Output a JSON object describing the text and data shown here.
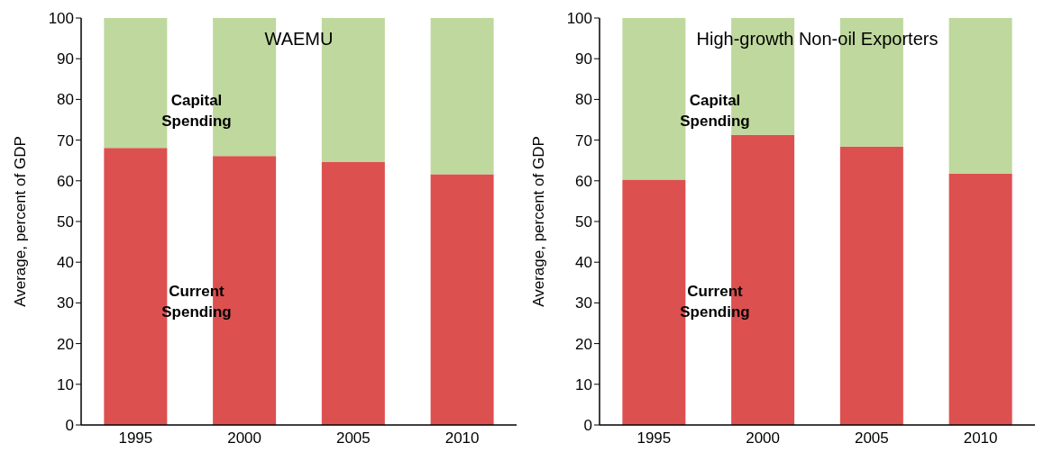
{
  "chart_data": [
    {
      "type": "bar",
      "title": "WAEMU",
      "stacked": true,
      "categories": [
        "1995",
        "2000",
        "2005",
        "2010"
      ],
      "ylabel": "Average, percent of GDP",
      "ylim": [
        0,
        100
      ],
      "yticks": [
        0,
        10,
        20,
        30,
        40,
        50,
        60,
        70,
        80,
        90,
        100
      ],
      "series": [
        {
          "color": "#dd5050",
          "values": [
            68.1,
            66.1,
            64.6,
            61.6
          ]
        },
        {
          "color": "#bfd89d",
          "values": [
            31.9,
            33.9,
            35.4,
            38.4
          ]
        }
      ],
      "annotations": [
        "Capital Spending",
        "Current Spending"
      ]
    },
    {
      "type": "bar",
      "title": "High-growth Non-oil Exporters",
      "stacked": true,
      "categories": [
        "1995",
        "2000",
        "2005",
        "2010"
      ],
      "ylabel": "Average, percent of GDP",
      "ylim": [
        0,
        100
      ],
      "yticks": [
        0,
        10,
        20,
        30,
        40,
        50,
        60,
        70,
        80,
        90,
        100
      ],
      "series": [
        {
          "color": "#dd5050",
          "values": [
            60.3,
            71.3,
            68.4,
            61.8
          ]
        },
        {
          "color": "#bfd89d",
          "values": [
            39.7,
            28.7,
            31.6,
            38.2
          ]
        }
      ],
      "annotations": [
        "Capital Spending",
        "Current Spending"
      ]
    }
  ]
}
